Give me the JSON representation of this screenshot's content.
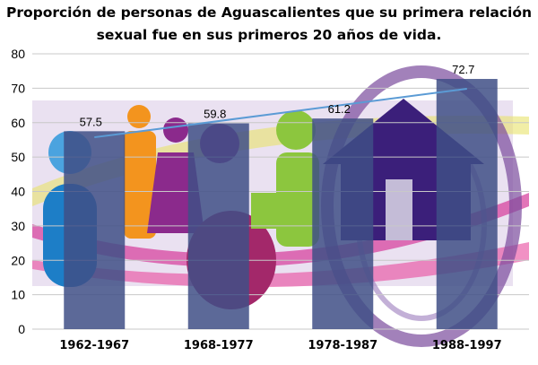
{
  "chart_data": {
    "type": "bar",
    "title": "Proporción de personas de Aguascalientes que su primera relación sexual fue en sus primeros 20 años de vida.",
    "categories": [
      "1962-1967",
      "1968-1977",
      "1978-1987",
      "1988-1997"
    ],
    "values": [
      57.5,
      59.8,
      61.2,
      72.7
    ],
    "data_labels": [
      "57.5",
      "59.8",
      "61.2",
      "72.7"
    ],
    "xlabel": "",
    "ylabel": "",
    "ylim": [
      0,
      80
    ],
    "yticks": [
      0,
      10,
      20,
      30,
      40,
      50,
      60,
      70,
      80
    ],
    "grid": true,
    "trendline": "linear",
    "colors": {
      "bar": "#3f4f86",
      "trendline": "#5b9bd5",
      "grid": "#c8c8c8"
    }
  }
}
